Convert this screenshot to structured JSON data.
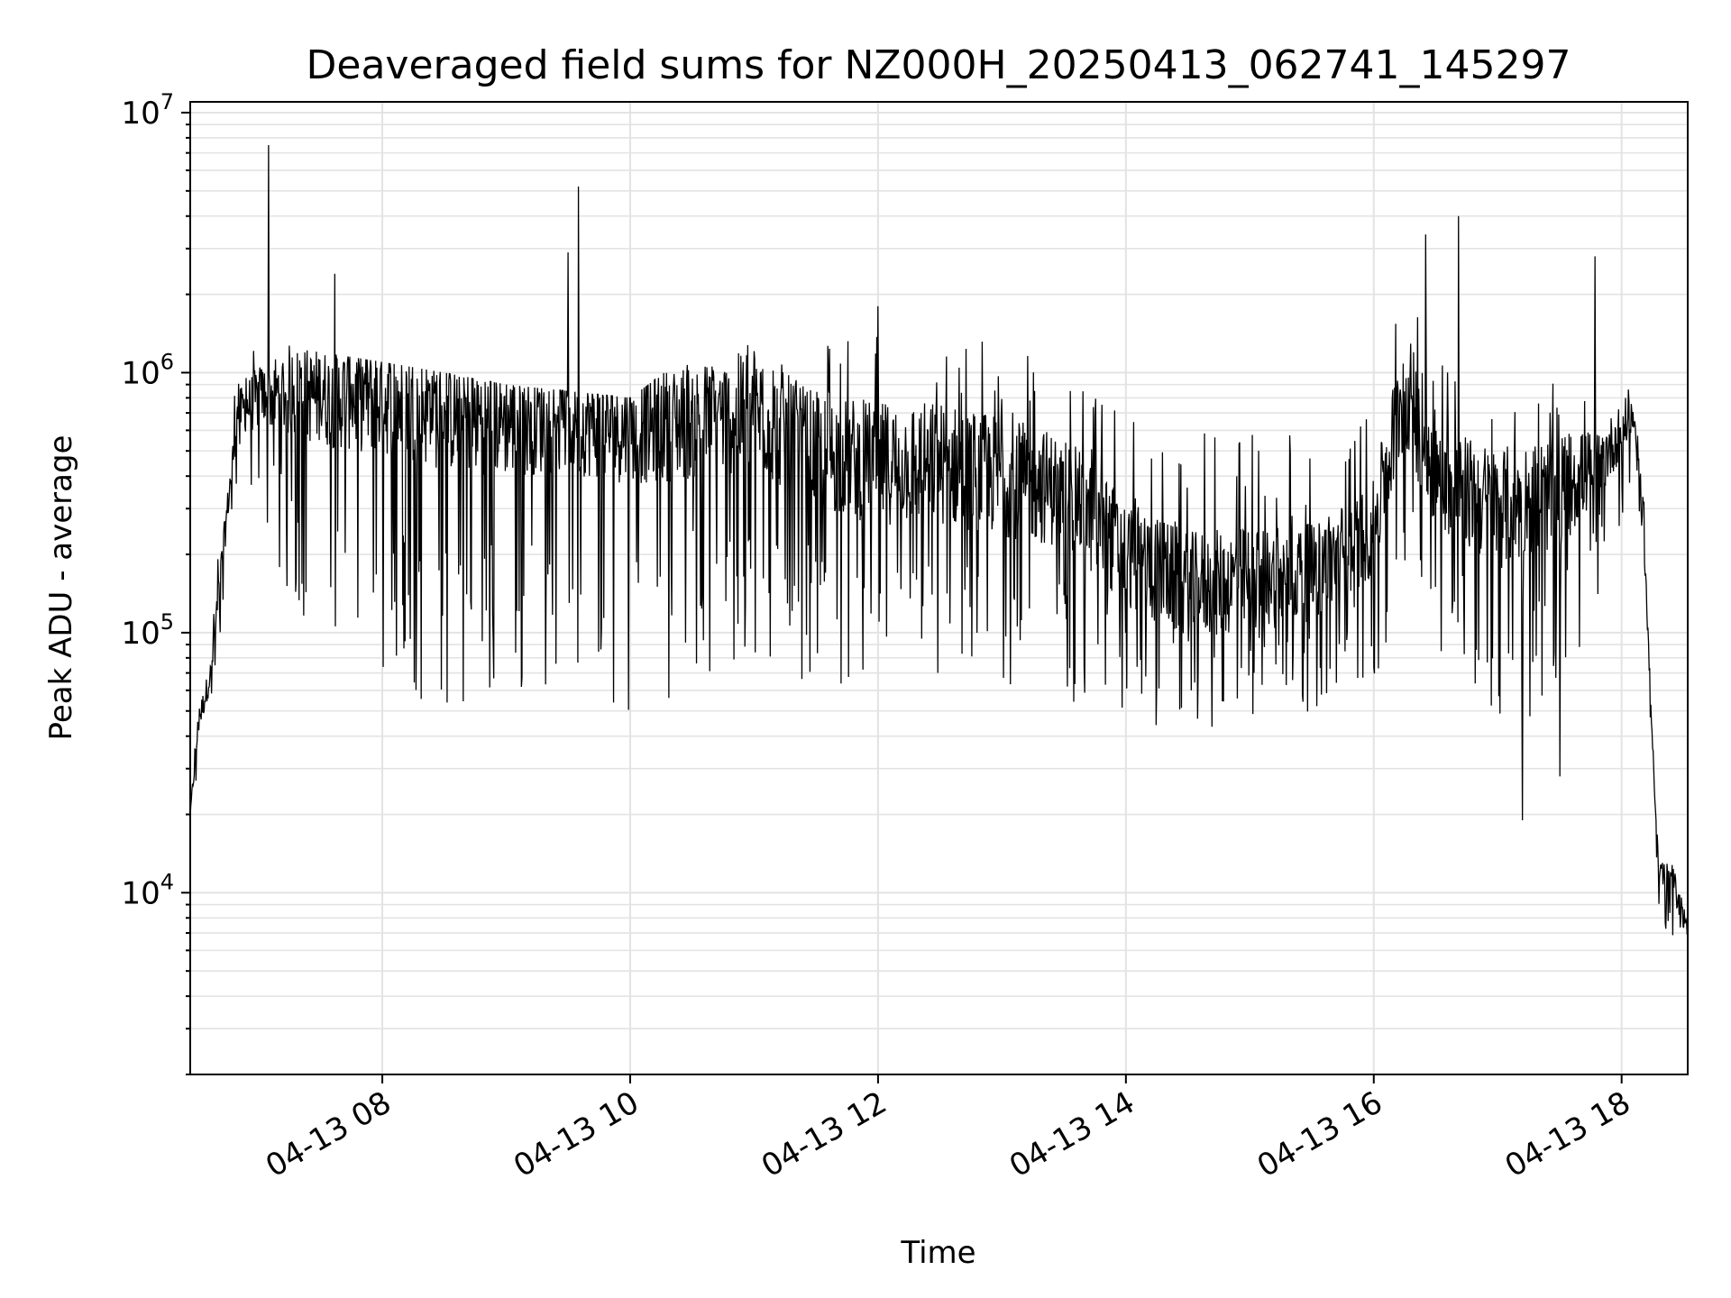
{
  "chart_data": {
    "type": "line",
    "title": "Deaveraged field sums for NZ000H_20250413_062741_145297",
    "xlabel": "Time",
    "ylabel": "Peak ADU - average",
    "y_scale": "log",
    "ylim": [
      2000,
      11000000
    ],
    "xlim": [
      "2025-04-13 06:27",
      "2025-04-13 18:32"
    ],
    "grid": true,
    "line_color": "#000000",
    "x_ticks": [
      {
        "time": "2025-04-13 08:00",
        "label": "04-13 08"
      },
      {
        "time": "2025-04-13 10:00",
        "label": "04-13 10"
      },
      {
        "time": "2025-04-13 12:00",
        "label": "04-13 12"
      },
      {
        "time": "2025-04-13 14:00",
        "label": "04-13 14"
      },
      {
        "time": "2025-04-13 16:00",
        "label": "04-13 16"
      },
      {
        "time": "2025-04-13 18:00",
        "label": "04-13 18"
      }
    ],
    "y_ticks": [
      {
        "value": 10000,
        "base": "10",
        "exp": "4"
      },
      {
        "value": 100000,
        "base": "10",
        "exp": "5"
      },
      {
        "value": 1000000,
        "base": "10",
        "exp": "6"
      },
      {
        "value": 10000000,
        "base": "10",
        "exp": "7"
      }
    ],
    "series": [
      {
        "envelope": [
          {
            "t": "06:27",
            "high": 20000,
            "low": 15000,
            "typical": 20000
          },
          {
            "t": "06:31",
            "high": 60000,
            "low": 30000,
            "typical": 45000
          },
          {
            "t": "06:37",
            "high": 95000,
            "low": 50000,
            "typical": 70000
          },
          {
            "t": "06:40",
            "high": 250000,
            "low": 70000,
            "typical": 120000
          },
          {
            "t": "06:45",
            "high": 400000,
            "low": 180000,
            "typical": 300000
          },
          {
            "t": "06:50",
            "high": 1200000,
            "low": 400000,
            "typical": 700000
          },
          {
            "t": "07:00",
            "high": 1300000,
            "low": 250000,
            "typical": 800000
          },
          {
            "t": "07:15",
            "high": 1300000,
            "low": 120000,
            "typical": 850000
          },
          {
            "t": "07:30",
            "high": 1200000,
            "low": 100000,
            "typical": 800000
          },
          {
            "t": "08:00",
            "high": 1100000,
            "low": 60000,
            "typical": 800000
          },
          {
            "t": "08:30",
            "high": 1000000,
            "low": 50000,
            "typical": 700000
          },
          {
            "t": "09:00",
            "high": 900000,
            "low": 55000,
            "typical": 650000
          },
          {
            "t": "09:30",
            "high": 850000,
            "low": 60000,
            "typical": 650000
          },
          {
            "t": "10:00",
            "high": 800000,
            "low": 50000,
            "typical": 600000
          },
          {
            "t": "10:30",
            "high": 1200000,
            "low": 60000,
            "typical": 650000
          },
          {
            "t": "11:00",
            "high": 1400000,
            "low": 70000,
            "typical": 700000
          },
          {
            "t": "11:30",
            "high": 1300000,
            "low": 65000,
            "typical": 500000
          },
          {
            "t": "12:00",
            "high": 1400000,
            "low": 60000,
            "typical": 450000
          },
          {
            "t": "12:30",
            "high": 1400000,
            "low": 60000,
            "typical": 450000
          },
          {
            "t": "13:00",
            "high": 1300000,
            "low": 60000,
            "typical": 400000
          },
          {
            "t": "13:30",
            "high": 1000000,
            "low": 55000,
            "typical": 350000
          },
          {
            "t": "14:00",
            "high": 700000,
            "low": 45000,
            "typical": 200000
          },
          {
            "t": "14:30",
            "high": 650000,
            "low": 40000,
            "typical": 150000
          },
          {
            "t": "15:00",
            "high": 650000,
            "low": 45000,
            "typical": 160000
          },
          {
            "t": "15:30",
            "high": 600000,
            "low": 50000,
            "typical": 170000
          },
          {
            "t": "16:00",
            "high": 700000,
            "low": 60000,
            "typical": 250000
          },
          {
            "t": "16:15",
            "high": 2500000,
            "low": 100000,
            "typical": 900000
          },
          {
            "t": "16:30",
            "high": 1200000,
            "low": 90000,
            "typical": 400000
          },
          {
            "t": "17:00",
            "high": 1000000,
            "low": 45000,
            "typical": 300000
          },
          {
            "t": "17:30",
            "high": 900000,
            "low": 50000,
            "typical": 350000
          },
          {
            "t": "17:50",
            "high": 900000,
            "low": 150000,
            "typical": 450000
          },
          {
            "t": "18:05",
            "high": 950000,
            "low": 300000,
            "typical": 700000
          },
          {
            "t": "18:10",
            "high": 500000,
            "low": 200000,
            "typical": 350000
          },
          {
            "t": "18:14",
            "high": 70000,
            "low": 40000,
            "typical": 55000
          },
          {
            "t": "18:18",
            "high": 15000,
            "low": 8000,
            "typical": 12000
          },
          {
            "t": "18:25",
            "high": 14000,
            "low": 6000,
            "typical": 11000
          },
          {
            "t": "18:32",
            "high": 8000,
            "low": 5500,
            "typical": 7000
          }
        ],
        "spikes": [
          {
            "t": "07:05",
            "value": 7500000
          },
          {
            "t": "07:37",
            "value": 2400000
          },
          {
            "t": "09:30",
            "value": 2900000
          },
          {
            "t": "09:35",
            "value": 5200000
          },
          {
            "t": "12:00",
            "value": 1800000
          },
          {
            "t": "16:25",
            "value": 3400000
          },
          {
            "t": "16:41",
            "value": 4000000
          },
          {
            "t": "17:47",
            "value": 2800000
          },
          {
            "t": "17:12",
            "value": 19000
          },
          {
            "t": "17:30",
            "value": 28000
          }
        ]
      }
    ]
  }
}
